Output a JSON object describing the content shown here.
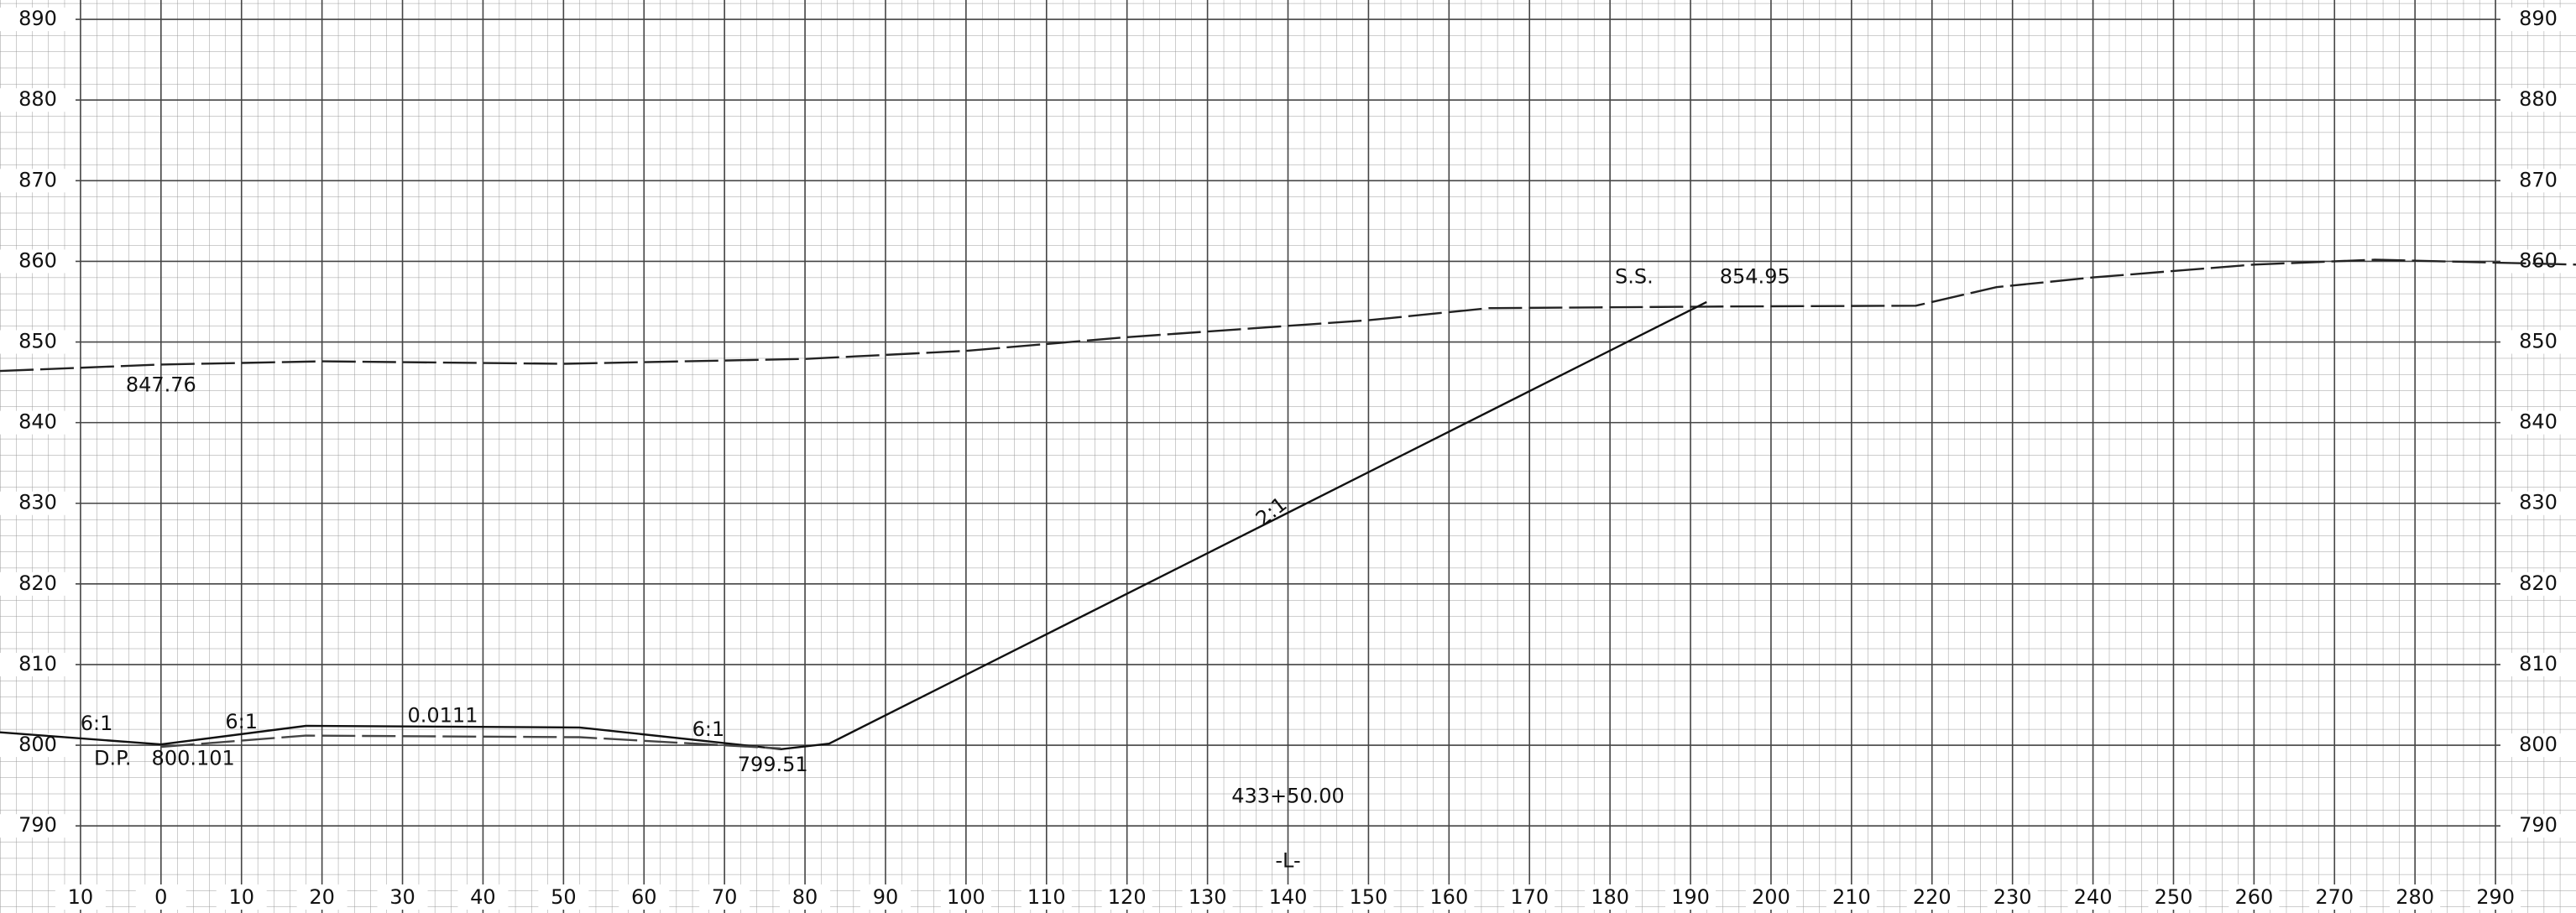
{
  "chart_data": {
    "type": "line",
    "xlim": [
      -20,
      300
    ],
    "ylim": [
      779.2,
      892.4
    ],
    "xticks": [
      {
        "value": -10,
        "label": "10"
      },
      0,
      10,
      20,
      30,
      40,
      50,
      60,
      70,
      80,
      90,
      100,
      110,
      120,
      130,
      140,
      150,
      160,
      170,
      180,
      190,
      200,
      210,
      220,
      230,
      240,
      250,
      260,
      270,
      280,
      290
    ],
    "yticks": [
      790,
      800,
      810,
      820,
      830,
      840,
      850,
      860,
      870,
      880,
      890
    ],
    "grid": true,
    "series": [
      {
        "color": "#222222",
        "dashed": true,
        "x": [
          -20,
          0,
          20,
          50,
          80,
          100,
          120,
          150,
          165,
          195,
          218,
          228,
          240,
          260,
          275,
          300
        ],
        "values": [
          846.4,
          847.2,
          847.6,
          847.3,
          847.9,
          848.9,
          850.6,
          852.7,
          854.2,
          854.4,
          854.5,
          856.8,
          858.0,
          859.6,
          860.2,
          859.6
        ]
      },
      {
        "color": "#111111",
        "dashed": false,
        "x": [
          -20,
          0,
          18,
          52,
          77,
          83,
          192
        ],
        "values": [
          801.6,
          800.1,
          802.4,
          802.2,
          799.51,
          800.2,
          854.95
        ]
      },
      {
        "color": "#444444",
        "dashed": true,
        "x": [
          0,
          18,
          52,
          77
        ],
        "values": [
          799.8,
          801.2,
          801.0,
          799.6
        ]
      }
    ],
    "annotations": [
      "6:1",
      "D.P.",
      "800.101",
      "6:1",
      "0.0111",
      "6:1",
      "799.51",
      "2:1",
      "S.S.",
      "854.95",
      "847.76",
      "433+50.00",
      "-L-"
    ]
  }
}
